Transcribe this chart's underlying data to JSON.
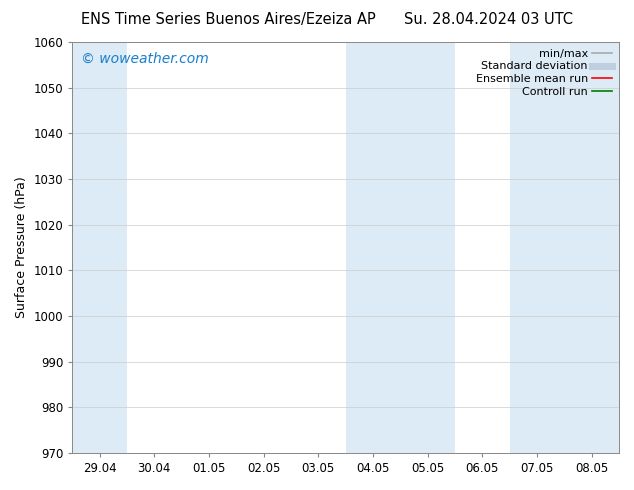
{
  "title_left": "ENS Time Series Buenos Aires/Ezeiza AP",
  "title_right": "Su. 28.04.2024 03 UTC",
  "ylabel": "Surface Pressure (hPa)",
  "ylim": [
    970,
    1060
  ],
  "yticks": [
    970,
    980,
    990,
    1000,
    1010,
    1020,
    1030,
    1040,
    1050,
    1060
  ],
  "x_labels": [
    "29.04",
    "30.04",
    "01.05",
    "02.05",
    "03.05",
    "04.05",
    "05.05",
    "06.05",
    "07.05",
    "08.05"
  ],
  "watermark": "© woweather.com",
  "watermark_color": "#1a7fcc",
  "bg_color": "#ffffff",
  "plot_bg_color": "#ffffff",
  "shade_color": "#d8e8f5",
  "shade_alpha": 0.85,
  "legend_items": [
    {
      "label": "min/max",
      "color": "#aaaaaa",
      "lw": 1.2
    },
    {
      "label": "Standard deviation",
      "color": "#c0cfe0",
      "lw": 5.0
    },
    {
      "label": "Ensemble mean run",
      "color": "#ff0000",
      "lw": 1.2
    },
    {
      "label": "Controll run",
      "color": "#008000",
      "lw": 1.2
    }
  ],
  "title_fontsize": 10.5,
  "label_fontsize": 9,
  "tick_fontsize": 8.5,
  "legend_fontsize": 8,
  "watermark_fontsize": 10
}
